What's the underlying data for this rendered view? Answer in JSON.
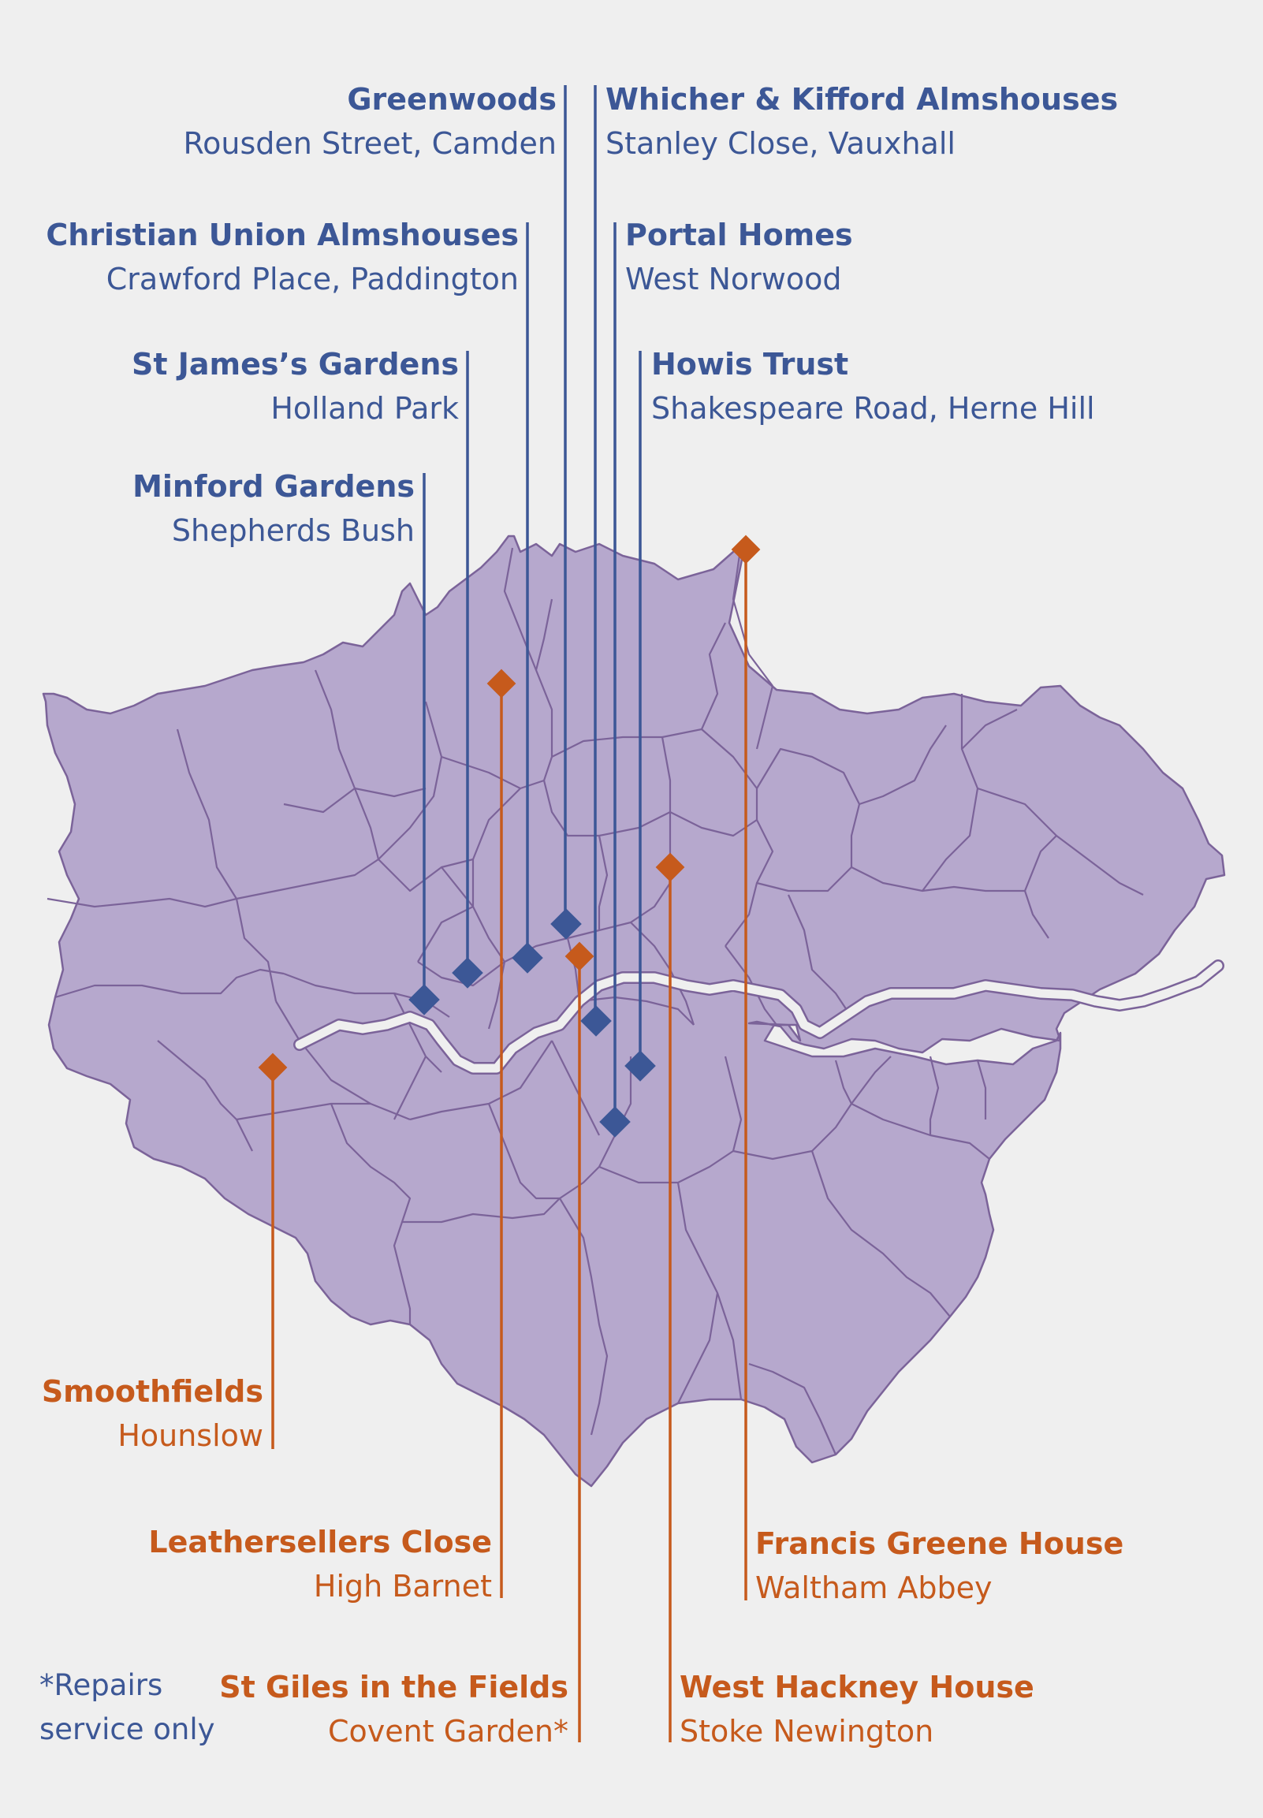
{
  "colors": {
    "background": "#efefef",
    "map_fill": "#b6a8cd",
    "map_stroke": "#7b6399",
    "river": "#efefef",
    "blue": "#3c5796",
    "orange": "#c65a1c"
  },
  "locations": {
    "greenwoods": {
      "name": "Greenwoods",
      "place": "Rousden Street, Camden",
      "color": "blue"
    },
    "whicher": {
      "name": "Whicher & Kifford Almshouses",
      "place": "Stanley Close, Vauxhall",
      "color": "blue"
    },
    "christian": {
      "name": "Christian Union Almshouses",
      "place": "Crawford Place, Paddington",
      "color": "blue"
    },
    "portal": {
      "name": "Portal Homes",
      "place": "West Norwood",
      "color": "blue"
    },
    "stjames": {
      "name": "St James’s Gardens",
      "place": "Holland Park",
      "color": "blue"
    },
    "howis": {
      "name": "Howis Trust",
      "place": "Shakespeare Road, Herne Hill",
      "color": "blue"
    },
    "minford": {
      "name": "Minford Gardens",
      "place": "Shepherds Bush",
      "color": "blue"
    },
    "smoothfields": {
      "name": "Smoothfields",
      "place": "Hounslow",
      "color": "orange"
    },
    "leathersellers": {
      "name": "Leathersellers Close",
      "place": "High Barnet",
      "color": "orange"
    },
    "francis": {
      "name": "Francis Greene House",
      "place": "Waltham Abbey",
      "color": "orange"
    },
    "stgiles": {
      "name": "St Giles in the Fields",
      "place": "Covent Garden*",
      "color": "orange"
    },
    "westhackney": {
      "name": "West Hackney House",
      "place": "Stoke Newington",
      "color": "orange"
    }
  },
  "footnote": {
    "line1": "*Repairs",
    "line2": "service only"
  }
}
